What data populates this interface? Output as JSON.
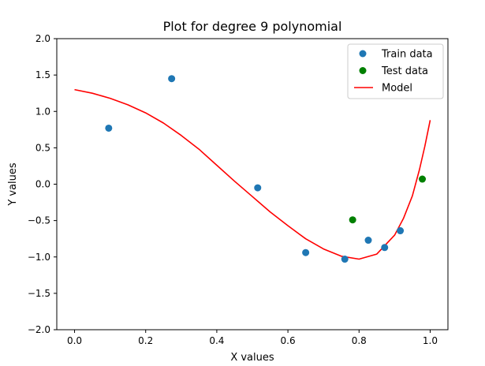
{
  "chart_data": {
    "type": "scatter",
    "title": "Plot for degree 9 polynomial",
    "xlabel": "X values",
    "ylabel": "Y values",
    "xlim": [
      -0.05,
      1.05
    ],
    "ylim": [
      -2.0,
      2.0
    ],
    "xticks": [
      "0.0",
      "0.2",
      "0.4",
      "0.6",
      "0.8",
      "1.0"
    ],
    "yticks": [
      "−2.0",
      "−1.5",
      "−1.0",
      "−0.5",
      "0.0",
      "0.5",
      "1.0",
      "1.5",
      "2.0"
    ],
    "grid": false,
    "legend_position": "top-right",
    "series": [
      {
        "name": "Train data",
        "kind": "scatter",
        "color": "#1f77b4",
        "x": [
          0.096,
          0.273,
          0.515,
          0.65,
          0.76,
          0.826,
          0.872,
          0.916
        ],
        "y": [
          0.77,
          1.45,
          -0.05,
          -0.94,
          -1.03,
          -0.77,
          -0.87,
          -0.64
        ]
      },
      {
        "name": "Test data",
        "kind": "scatter",
        "color": "#008000",
        "x": [
          0.782,
          0.978
        ],
        "y": [
          -0.49,
          0.07
        ]
      },
      {
        "name": "Model",
        "kind": "line",
        "color": "#ff0000",
        "x": [
          0.0,
          0.05,
          0.1,
          0.15,
          0.2,
          0.25,
          0.3,
          0.35,
          0.4,
          0.45,
          0.5,
          0.55,
          0.6,
          0.65,
          0.7,
          0.75,
          0.8,
          0.85,
          0.9,
          0.925,
          0.95,
          0.97,
          0.985,
          1.0
        ],
        "y": [
          1.3,
          1.25,
          1.18,
          1.09,
          0.98,
          0.84,
          0.67,
          0.48,
          0.26,
          0.04,
          -0.17,
          -0.38,
          -0.57,
          -0.75,
          -0.89,
          -0.99,
          -1.03,
          -0.96,
          -0.7,
          -0.47,
          -0.16,
          0.2,
          0.52,
          0.88
        ]
      }
    ]
  }
}
